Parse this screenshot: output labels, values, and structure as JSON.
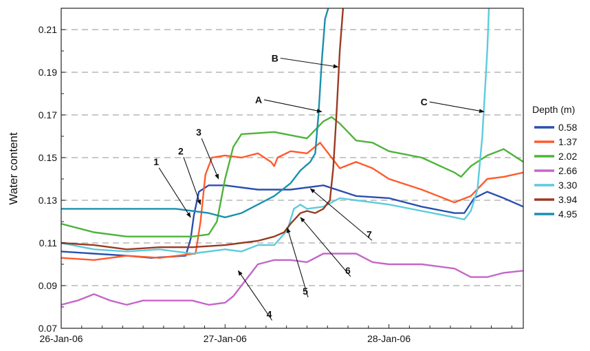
{
  "chart_data": {
    "type": "line",
    "title": "",
    "xlabel": "",
    "ylabel": "Water content",
    "x_tick_labels": [
      "26-Jan-06",
      "27-Jan-06",
      "28-Jan-06"
    ],
    "x_range_days": [
      0,
      2.82
    ],
    "ylim": [
      0.07,
      0.22
    ],
    "y_ticks": [
      "0.07",
      "0.09",
      "0.11",
      "0.13",
      "0.15",
      "0.17",
      "0.19",
      "0.21"
    ],
    "grid": "horizontal dashed",
    "legend": {
      "title": "Depth (m)",
      "placement": "right",
      "entries": [
        "0.58",
        "1.37",
        "2.02",
        "2.66",
        "3.30",
        "3.94",
        "4.95"
      ]
    },
    "series": [
      {
        "name": "0.58",
        "color": "#2a4fb0",
        "x": [
          0,
          0.2,
          0.4,
          0.55,
          0.76,
          0.79,
          0.81,
          0.84,
          0.9,
          1.0,
          1.2,
          1.4,
          1.6,
          1.8,
          2.0,
          2.2,
          2.4,
          2.46,
          2.52,
          2.6,
          2.7,
          2.82
        ],
        "y": [
          0.106,
          0.105,
          0.104,
          0.103,
          0.104,
          0.112,
          0.123,
          0.134,
          0.137,
          0.137,
          0.135,
          0.135,
          0.137,
          0.132,
          0.131,
          0.127,
          0.124,
          0.124,
          0.131,
          0.134,
          0.131,
          0.127
        ]
      },
      {
        "name": "1.37",
        "color": "#ff5a2b",
        "x": [
          0,
          0.2,
          0.4,
          0.6,
          0.82,
          0.85,
          0.88,
          0.92,
          1.0,
          1.1,
          1.2,
          1.28,
          1.3,
          1.32,
          1.4,
          1.5,
          1.58,
          1.7,
          1.8,
          1.9,
          2.0,
          2.2,
          2.4,
          2.5,
          2.6,
          2.7,
          2.82
        ],
        "y": [
          0.103,
          0.102,
          0.104,
          0.103,
          0.105,
          0.12,
          0.142,
          0.15,
          0.151,
          0.15,
          0.152,
          0.148,
          0.146,
          0.15,
          0.153,
          0.152,
          0.157,
          0.145,
          0.148,
          0.145,
          0.14,
          0.135,
          0.129,
          0.132,
          0.14,
          0.141,
          0.143
        ]
      },
      {
        "name": "2.02",
        "color": "#4db339",
        "x": [
          0,
          0.2,
          0.4,
          0.6,
          0.8,
          0.9,
          0.95,
          1.0,
          1.05,
          1.1,
          1.3,
          1.5,
          1.6,
          1.65,
          1.7,
          1.8,
          1.9,
          2.0,
          2.2,
          2.4,
          2.44,
          2.5,
          2.6,
          2.7,
          2.82
        ],
        "y": [
          0.119,
          0.115,
          0.113,
          0.113,
          0.113,
          0.114,
          0.12,
          0.14,
          0.155,
          0.161,
          0.162,
          0.159,
          0.167,
          0.169,
          0.166,
          0.158,
          0.157,
          0.153,
          0.15,
          0.143,
          0.141,
          0.146,
          0.151,
          0.154,
          0.148
        ]
      },
      {
        "name": "2.66",
        "color": "#c466c8",
        "x": [
          0,
          0.1,
          0.2,
          0.3,
          0.4,
          0.5,
          0.6,
          0.7,
          0.8,
          0.9,
          1.0,
          1.05,
          1.1,
          1.2,
          1.3,
          1.4,
          1.5,
          1.6,
          1.7,
          1.8,
          1.9,
          2.0,
          2.2,
          2.4,
          2.5,
          2.6,
          2.7,
          2.82
        ],
        "y": [
          0.081,
          0.083,
          0.086,
          0.083,
          0.081,
          0.083,
          0.083,
          0.083,
          0.083,
          0.081,
          0.082,
          0.085,
          0.09,
          0.1,
          0.102,
          0.102,
          0.101,
          0.105,
          0.105,
          0.105,
          0.101,
          0.1,
          0.1,
          0.098,
          0.094,
          0.094,
          0.096,
          0.097
        ]
      },
      {
        "name": "3.30",
        "color": "#5ccbdc",
        "x": [
          0,
          0.2,
          0.4,
          0.6,
          0.8,
          1.0,
          1.1,
          1.2,
          1.3,
          1.38,
          1.42,
          1.46,
          1.5,
          1.6,
          1.7,
          1.8,
          1.9,
          2.0,
          2.2,
          2.4,
          2.46,
          2.5,
          2.54,
          2.57,
          2.6,
          2.61
        ],
        "y": [
          0.11,
          0.107,
          0.106,
          0.107,
          0.105,
          0.107,
          0.106,
          0.109,
          0.109,
          0.116,
          0.126,
          0.128,
          0.126,
          0.127,
          0.131,
          0.13,
          0.129,
          0.128,
          0.125,
          0.122,
          0.121,
          0.125,
          0.135,
          0.16,
          0.2,
          0.22
        ]
      },
      {
        "name": "3.94",
        "color": "#9a3a22",
        "x": [
          0,
          0.2,
          0.4,
          0.6,
          0.8,
          1.0,
          1.1,
          1.2,
          1.3,
          1.36,
          1.4,
          1.46,
          1.5,
          1.55,
          1.6,
          1.64,
          1.66,
          1.68,
          1.7,
          1.72
        ],
        "y": [
          0.11,
          0.109,
          0.107,
          0.108,
          0.108,
          0.109,
          0.11,
          0.111,
          0.113,
          0.115,
          0.119,
          0.124,
          0.125,
          0.124,
          0.126,
          0.13,
          0.145,
          0.17,
          0.2,
          0.22
        ]
      },
      {
        "name": "4.95",
        "color": "#1a8fae",
        "x": [
          0,
          0.2,
          0.4,
          0.6,
          0.7,
          0.8,
          0.9,
          1.0,
          1.1,
          1.2,
          1.3,
          1.4,
          1.46,
          1.52,
          1.55,
          1.57,
          1.59,
          1.61,
          1.63
        ],
        "y": [
          0.126,
          0.126,
          0.126,
          0.126,
          0.126,
          0.125,
          0.124,
          0.122,
          0.124,
          0.128,
          0.132,
          0.138,
          0.144,
          0.148,
          0.152,
          0.17,
          0.195,
          0.215,
          0.22
        ]
      }
    ],
    "annotations": [
      {
        "text": "1",
        "label_x": 0.58,
        "label_y": 0.1465,
        "arrow_x": 0.79,
        "arrow_y": 0.122
      },
      {
        "text": "2",
        "label_x": 0.73,
        "label_y": 0.1515,
        "arrow_x": 0.85,
        "arrow_y": 0.128
      },
      {
        "text": "3",
        "label_x": 0.84,
        "label_y": 0.1603,
        "arrow_x": 0.96,
        "arrow_y": 0.14
      },
      {
        "text": "4",
        "label_x": 1.27,
        "label_y": 0.075,
        "arrow_x": 1.08,
        "arrow_y": 0.097
      },
      {
        "text": "5",
        "label_x": 1.49,
        "label_y": 0.0858,
        "arrow_x": 1.38,
        "arrow_y": 0.117
      },
      {
        "text": "6",
        "label_x": 1.75,
        "label_y": 0.0955,
        "arrow_x": 1.46,
        "arrow_y": 0.122
      },
      {
        "text": "7",
        "label_x": 1.88,
        "label_y": 0.1125,
        "arrow_x": 1.52,
        "arrow_y": 0.1355
      },
      {
        "text": "A",
        "label_x": 1.2,
        "label_y": 0.1755,
        "arrow_x": 1.59,
        "arrow_y": 0.1715
      },
      {
        "text": "B",
        "label_x": 1.3,
        "label_y": 0.195,
        "arrow_x": 1.69,
        "arrow_y": 0.1925
      },
      {
        "text": "C",
        "label_x": 2.21,
        "label_y": 0.1745,
        "arrow_x": 2.58,
        "arrow_y": 0.1715
      }
    ]
  }
}
